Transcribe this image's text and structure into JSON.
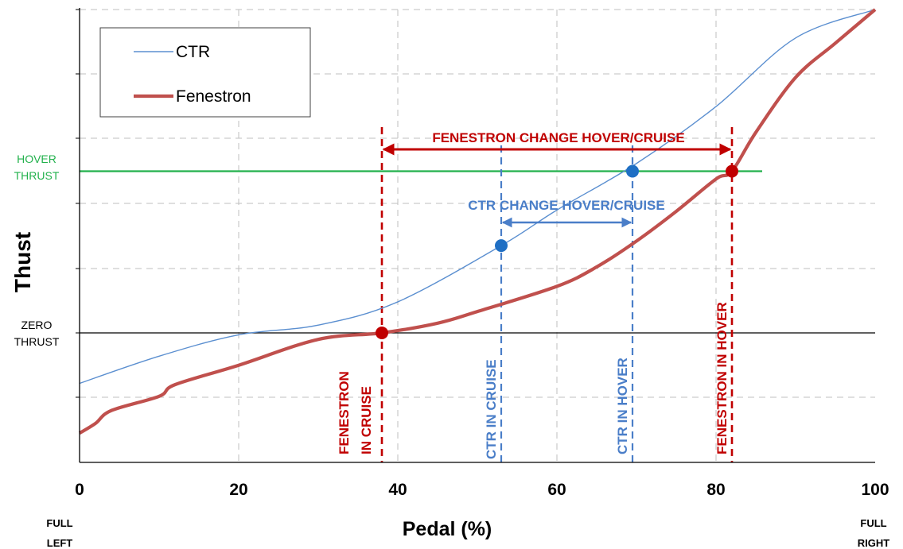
{
  "chart_data": {
    "type": "line",
    "xlabel": "Pedal (%)",
    "ylabel": "Thust",
    "xlim": [
      0,
      100
    ],
    "x_ticks": [
      "0",
      "20",
      "40",
      "60",
      "80",
      "100"
    ],
    "grid": true,
    "legend_position": "top-left",
    "series": [
      {
        "name": "CTR",
        "color": "#5b8fd0",
        "x": [
          0,
          10,
          20,
          30,
          40,
          53,
          60,
          70,
          80,
          90,
          100
        ],
        "y": [
          -0.78,
          -0.36,
          -0.03,
          0.12,
          0.48,
          1.35,
          1.9,
          2.62,
          3.5,
          4.56,
          5.0
        ]
      },
      {
        "name": "Fenestron",
        "color": "#c0504d",
        "x": [
          0,
          2,
          4,
          10,
          12,
          20,
          30,
          38,
          45,
          50,
          60,
          65,
          70,
          75,
          80,
          82,
          85,
          90,
          95,
          100
        ],
        "y": [
          -1.55,
          -1.4,
          -1.2,
          -0.98,
          -0.8,
          -0.5,
          -0.1,
          0.0,
          0.15,
          0.33,
          0.72,
          1.02,
          1.42,
          1.88,
          2.38,
          2.5,
          3.1,
          3.95,
          4.48,
          5.0
        ]
      }
    ],
    "reference_lines": {
      "hover_thrust": {
        "label": [
          "HOVER",
          "THRUST"
        ],
        "y": 2.5,
        "color": "#22b14c"
      },
      "zero_thrust": {
        "label": [
          "ZERO",
          "THRUST"
        ],
        "y": 0,
        "color": "#000000"
      }
    },
    "markers": [
      {
        "x": 38,
        "y": 0.0,
        "color": "#c00000"
      },
      {
        "x": 82,
        "y": 2.5,
        "color": "#c00000"
      },
      {
        "x": 53,
        "y": 1.35,
        "color": "#1f6fc4"
      },
      {
        "x": 69.5,
        "y": 2.5,
        "color": "#1f6fc4"
      }
    ],
    "vertical_lines": [
      {
        "x": 38,
        "label": [
          "FENESTRON",
          "IN CRUISE"
        ],
        "color": "#c00000"
      },
      {
        "x": 53,
        "label": [
          "CTR IN CRUISE"
        ],
        "color": "#4a7ec8"
      },
      {
        "x": 69.5,
        "label": [
          "CTR IN HOVER"
        ],
        "color": "#4a7ec8"
      },
      {
        "x": 82,
        "label": [
          "FENESTRON IN HOVER"
        ],
        "color": "#c00000"
      }
    ],
    "ranges": [
      {
        "from": 38,
        "to": 82,
        "label": "FENESTRON CHANGE HOVER/CRUISE",
        "color": "#c00000"
      },
      {
        "from": 53,
        "to": 69.5,
        "label": "CTR CHANGE HOVER/CRUISE",
        "color": "#4a7ec8"
      }
    ],
    "corner_labels": {
      "left": [
        "FULL",
        "LEFT"
      ],
      "right": [
        "FULL",
        "RIGHT"
      ]
    }
  }
}
